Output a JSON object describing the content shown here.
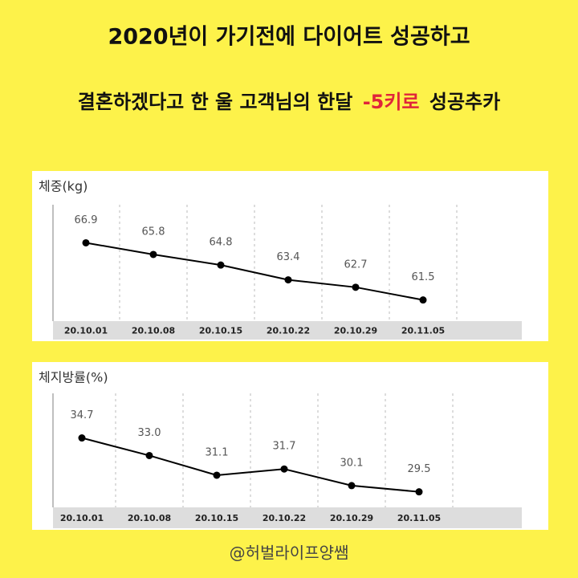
{
  "header": {
    "title": "2020년이 가기전에 다이어트 성공하고",
    "subtitle": [
      "결혼하겠다고 한 울 고객님의 한달",
      "-5키로",
      "성공추카"
    ]
  },
  "chart_data": [
    {
      "type": "line",
      "title": "체중(kg)",
      "categories": [
        "20.10.01",
        "20.10.08",
        "20.10.15",
        "20.10.22",
        "20.10.29",
        "20.11.05"
      ],
      "series": [
        {
          "color": "#000000",
          "values": [
            66.9,
            65.8,
            64.8,
            63.4,
            62.7,
            61.5
          ]
        }
      ],
      "ylim": [
        59.5,
        70.5
      ],
      "grid": true
    },
    {
      "type": "line",
      "title": "체지방률(%)",
      "categories": [
        "20.10.01",
        "20.10.08",
        "20.10.15",
        "20.10.22",
        "20.10.29",
        "20.11.05"
      ],
      "series": [
        {
          "color": "#000000",
          "values": [
            34.7,
            33,
            31.1,
            31.7,
            30.1,
            29.5
          ],
          "value_labels": [
            "34.7",
            "33.0",
            "31.1",
            "31.7",
            "30.1",
            "29.5"
          ]
        }
      ],
      "ylim": [
        28,
        39
      ],
      "grid": true
    }
  ],
  "footer": "@허벌라이프양쌤"
}
